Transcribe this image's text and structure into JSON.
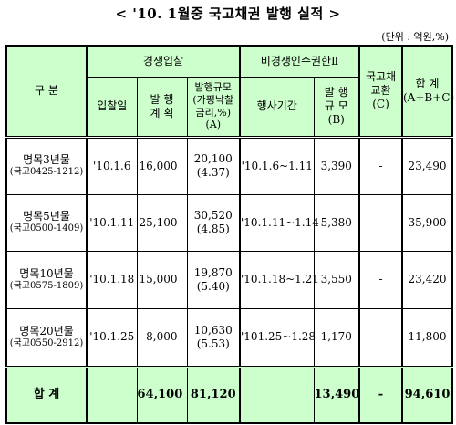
{
  "title": "< '10. 1월중 국고채권 발행 실적 >",
  "unit": "(단위 : 억원,%)",
  "headers": {
    "category": "구 분",
    "competitive": "경쟁입찰",
    "noncompetitive": "비경쟁인수권한Ⅱ",
    "exchange": [
      "국고채",
      "교환",
      "(C)"
    ],
    "total": [
      "합 계",
      "(A+B+C)"
    ],
    "bid_date": "입찰일",
    "planned": [
      "발 행",
      "계 획"
    ],
    "issued": [
      "발행규모",
      "(가평낙찰",
      "금리,%)",
      "(A)"
    ],
    "exercise_period": "행사기간",
    "issue_size_b": [
      "발 행",
      "규 모",
      "(B)"
    ]
  },
  "rows": [
    {
      "name": "명목3년물",
      "code": "(국고0425-1212)",
      "bid_date": "'10.1.6",
      "planned": "16,000",
      "issued": "20,100",
      "rate": "(4.37)",
      "period": "'10.1.6~1.11",
      "size_b": "3,390",
      "exchange": "-",
      "total": "23,490"
    },
    {
      "name": "명목5년물",
      "code": "(국고0500-1409)",
      "bid_date": "'10.1.11",
      "planned": "25,100",
      "issued": "30,520",
      "rate": "(4.85)",
      "period": "'10.1.11~1.14",
      "size_b": "5,380",
      "exchange": "-",
      "total": "35,900"
    },
    {
      "name": "명목10년물",
      "code": "(국고0575-1809)",
      "bid_date": "'10.1.18",
      "planned": "15,000",
      "issued": "19,870",
      "rate": "(5.40)",
      "period": "'10.1.18~1.21",
      "size_b": "3,550",
      "exchange": "-",
      "total": "23,420"
    },
    {
      "name": "명목20년물",
      "code": "(국고0550-2912)",
      "bid_date": "'10.1.25",
      "planned": "8,000",
      "issued": "10,630",
      "rate": "(5.53)",
      "period": "'101.25~1.28",
      "size_b": "1,170",
      "exchange": "-",
      "total": "11,800"
    }
  ],
  "total_row": {
    "label": "합 계",
    "planned": "64,100",
    "issued": "81,120",
    "size_b": "13,490",
    "exchange": "-",
    "total": "94,610"
  }
}
